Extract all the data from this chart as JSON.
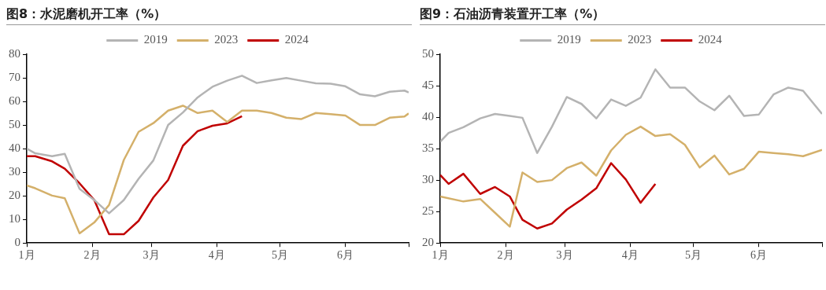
{
  "chart_data": [
    {
      "type": "line",
      "title": "图8：水泥磨机开工率（%）",
      "legend": "top",
      "grid": false,
      "marker": "none",
      "line_style": "solid",
      "xlim": [
        "--01-01",
        "--07-01"
      ],
      "xticks": [
        {
          "value": "--01-01",
          "label": "1月"
        },
        {
          "value": "--02-01",
          "label": "2月"
        },
        {
          "value": "--03-01",
          "label": "3月"
        },
        {
          "value": "--04-01",
          "label": "4月"
        },
        {
          "value": "--05-01",
          "label": "5月"
        },
        {
          "value": "--06-01",
          "label": "6月"
        },
        {
          "value": "--07-01",
          "label": null
        }
      ],
      "ylim": [
        0,
        80
      ],
      "yticks": [
        0,
        10,
        20,
        30,
        40,
        50,
        60,
        70,
        80
      ],
      "series": [
        {
          "name": "2019",
          "color": "#b4b4b4",
          "x": [
            "--01-01",
            "--01-05",
            "--01-13",
            "--01-19",
            "--01-26",
            "--02-02",
            "--02-09",
            "--02-16",
            "--02-23",
            "--03-02",
            "--03-09",
            "--03-16",
            "--03-23",
            "--03-30",
            "--04-06",
            "--04-13",
            "--04-20",
            "--04-27",
            "--05-04",
            "--05-11",
            "--05-18",
            "--05-25",
            "--06-01",
            "--06-08",
            "--06-15",
            "--06-22",
            "--06-29",
            "--07-01"
          ],
          "values": [
            40,
            38,
            36.8,
            37.8,
            23,
            18.2,
            12.6,
            18.2,
            27.2,
            35,
            50,
            55.3,
            61.7,
            66.2,
            68.8,
            70.9,
            67.8,
            68.9,
            69.9,
            68.8,
            67.7,
            67.5,
            66.4,
            63,
            62.2,
            64.1,
            64.6,
            63.8
          ]
        },
        {
          "name": "2023",
          "color": "#d4b06a",
          "x": [
            "--01-01",
            "--01-05",
            "--01-13",
            "--01-19",
            "--01-26",
            "--02-02",
            "--02-09",
            "--02-16",
            "--02-23",
            "--03-02",
            "--03-09",
            "--03-16",
            "--03-23",
            "--03-30",
            "--04-06",
            "--04-13",
            "--04-20",
            "--04-27",
            "--05-04",
            "--05-11",
            "--05-18",
            "--05-25",
            "--06-01",
            "--06-08",
            "--06-15",
            "--06-22",
            "--06-29",
            "--07-01"
          ],
          "values": [
            24.4,
            23.2,
            20.1,
            19,
            4.1,
            8.7,
            16.1,
            35.2,
            47.1,
            50.8,
            56.1,
            58.2,
            55.1,
            56.1,
            51.3,
            56.1,
            56.1,
            55.1,
            53.1,
            52.5,
            55.1,
            54.6,
            54,
            50,
            50,
            53.1,
            53.6,
            54.9
          ]
        },
        {
          "name": "2024",
          "color": "#c00000",
          "x": [
            "--01-01",
            "--01-05",
            "--01-13",
            "--01-19",
            "--01-26",
            "--02-02",
            "--02-09",
            "--02-16",
            "--02-23",
            "--03-02",
            "--03-09",
            "--03-16",
            "--03-23",
            "--03-30",
            "--04-06",
            "--04-13"
          ],
          "values": [
            36.8,
            36.8,
            34.6,
            31.5,
            25.3,
            18.2,
            3.7,
            3.7,
            9.4,
            19.3,
            26.7,
            41.2,
            47.4,
            49.7,
            50.7,
            53.7
          ]
        }
      ]
    },
    {
      "type": "line",
      "title": "图9：石油沥青装置开工率（%）",
      "legend": "top",
      "grid": false,
      "marker": "none",
      "line_style": "solid",
      "xlim": [
        "--01-01",
        "--07-01"
      ],
      "xticks": [
        {
          "value": "--01-01",
          "label": "1月"
        },
        {
          "value": "--02-01",
          "label": "2月"
        },
        {
          "value": "--03-01",
          "label": "3月"
        },
        {
          "value": "--04-01",
          "label": "4月"
        },
        {
          "value": "--05-01",
          "label": "5月"
        },
        {
          "value": "--06-01",
          "label": "6月"
        },
        {
          "value": "--07-01",
          "label": null
        }
      ],
      "ylim": [
        20,
        50
      ],
      "yticks": [
        20,
        25,
        30,
        35,
        40,
        45,
        50
      ],
      "series": [
        {
          "name": "2019",
          "color": "#b4b4b4",
          "x": [
            "--01-01",
            "--01-05",
            "--01-12",
            "--01-20",
            "--01-27",
            "--02-03",
            "--02-09",
            "--02-16",
            "--02-23",
            "--03-02",
            "--03-09",
            "--03-16",
            "--03-23",
            "--03-30",
            "--04-06",
            "--04-13",
            "--04-20",
            "--04-27",
            "--05-04",
            "--05-11",
            "--05-18",
            "--05-25",
            "--06-01",
            "--06-08",
            "--06-15",
            "--06-22",
            "--07-01"
          ],
          "values": [
            36.1,
            37.5,
            38.4,
            39.8,
            40.5,
            40.2,
            39.9,
            34.3,
            38.5,
            43.2,
            42.1,
            39.8,
            42.8,
            41.8,
            43.1,
            47.6,
            44.7,
            44.7,
            42.5,
            41.1,
            43.4,
            40.2,
            40.4,
            43.6,
            44.7,
            44.2,
            40.5
          ]
        },
        {
          "name": "2023",
          "color": "#d4b06a",
          "x": [
            "--01-01",
            "--01-12",
            "--01-20",
            "--01-27",
            "--02-03",
            "--02-09",
            "--02-16",
            "--02-23",
            "--03-02",
            "--03-09",
            "--03-16",
            "--03-23",
            "--03-30",
            "--04-06",
            "--04-13",
            "--04-20",
            "--04-27",
            "--05-04",
            "--05-11",
            "--05-18",
            "--05-25",
            "--06-01",
            "--06-08",
            "--06-15",
            "--06-22",
            "--07-01"
          ],
          "values": [
            27.4,
            26.6,
            27,
            24.8,
            22.6,
            31.2,
            29.7,
            30,
            31.9,
            32.8,
            30.7,
            34.7,
            37.2,
            38.5,
            37,
            37.3,
            35.6,
            32,
            33.9,
            30.9,
            31.8,
            34.5,
            34.3,
            34.1,
            33.8,
            34.8
          ]
        },
        {
          "name": "2024",
          "color": "#c00000",
          "x": [
            "--01-01",
            "--01-05",
            "--01-12",
            "--01-20",
            "--01-27",
            "--02-03",
            "--02-09",
            "--02-16",
            "--02-23",
            "--03-02",
            "--03-09",
            "--03-16",
            "--03-23",
            "--03-30",
            "--04-06",
            "--04-13"
          ],
          "values": [
            30.8,
            29.4,
            31,
            27.8,
            28.9,
            27.4,
            23.7,
            22.3,
            23.1,
            25.3,
            26.9,
            28.7,
            32.7,
            30.1,
            26.4,
            29.4
          ]
        }
      ]
    }
  ]
}
